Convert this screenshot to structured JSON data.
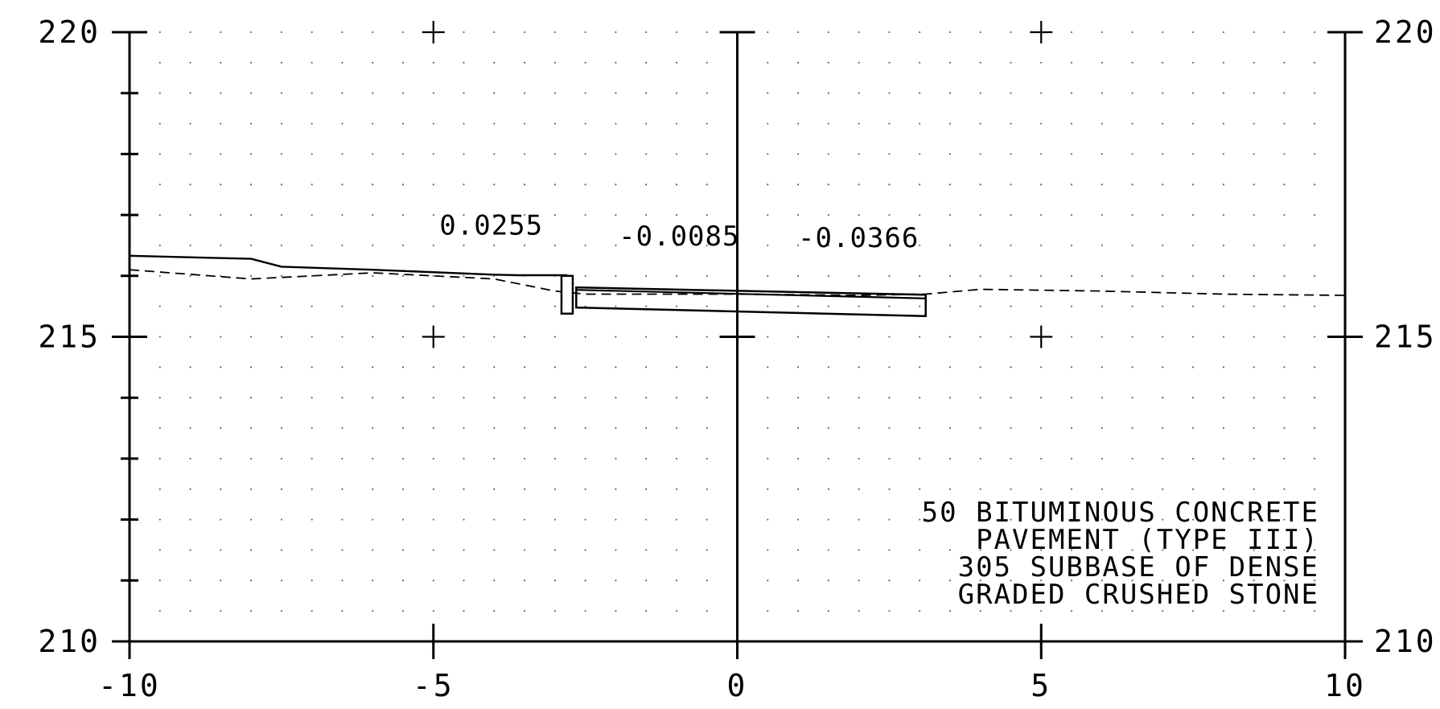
{
  "chart_data": {
    "type": "cross-section",
    "xlim": [
      -10,
      10
    ],
    "ylim": [
      210,
      220
    ],
    "x_ticks": [
      {
        "value": -10,
        "label": "-10"
      },
      {
        "value": -5,
        "label": "-5"
      },
      {
        "value": 0,
        "label": "0"
      },
      {
        "value": 5,
        "label": "5"
      },
      {
        "value": 10,
        "label": "10"
      }
    ],
    "y_ticks": [
      {
        "value": 210,
        "label": "210"
      },
      {
        "value": 215,
        "label": "215"
      },
      {
        "value": 220,
        "label": "220"
      }
    ],
    "grid": "dotted",
    "existing_ground": [
      [
        -10,
        216.1
      ],
      [
        -8,
        215.95
      ],
      [
        -6,
        216.05
      ],
      [
        -4,
        215.95
      ],
      [
        -3,
        215.75
      ],
      [
        -2.5,
        215.7
      ],
      [
        0,
        215.7
      ],
      [
        2,
        215.68
      ],
      [
        3.1,
        215.7
      ],
      [
        4,
        215.78
      ],
      [
        6,
        215.75
      ],
      [
        8,
        215.7
      ],
      [
        10,
        215.68
      ]
    ],
    "proposed_surface": [
      [
        -10,
        216.33
      ],
      [
        -8,
        216.28
      ],
      [
        -7.5,
        216.15
      ],
      [
        -6,
        216.1
      ],
      [
        -4,
        216.02
      ],
      [
        -3.6,
        216.01
      ],
      [
        -2.8,
        216.01
      ]
    ],
    "curb": {
      "x_left": -2.8,
      "x_right": -2.65,
      "top": 216.0,
      "bottom": 215.38
    },
    "pavement": {
      "x_start": -2.65,
      "x_end": 3.1,
      "top_start": 215.81,
      "top_end": 215.69,
      "layer_start": 215.77,
      "layer_end": 215.63,
      "bottom_start": 215.48,
      "bottom_end": 215.34
    },
    "slope_labels": [
      {
        "text": "0.0255",
        "x": -4.9,
        "y": 216.68
      },
      {
        "text": "-0.0085",
        "x": -1.95,
        "y": 216.5
      },
      {
        "text": "-0.0366",
        "x": 1.0,
        "y": 216.47
      }
    ],
    "notes": [
      "50 BITUMINOUS CONCRETE",
      "PAVEMENT (TYPE III)",
      "305 SUBBASE OF DENSE",
      "GRADED CRUSHED STONE"
    ]
  }
}
